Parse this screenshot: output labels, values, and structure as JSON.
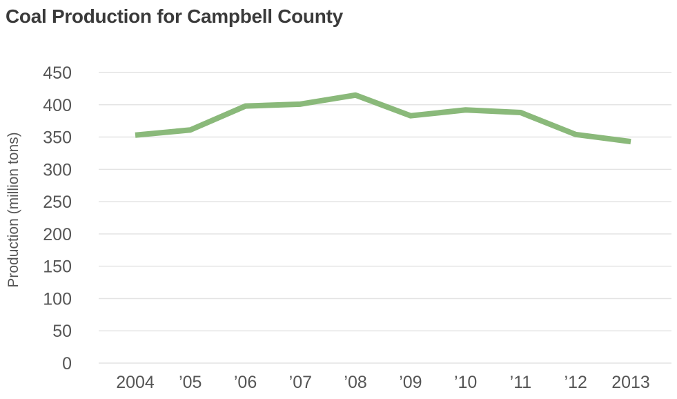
{
  "chart_data": {
    "type": "line",
    "title": "Coal Production for Campbell County",
    "xlabel": "",
    "ylabel": "Production (million tons)",
    "categories": [
      "2004",
      "’05",
      "’06",
      "’07",
      "’08",
      "’09",
      "’10",
      "’11",
      "’12",
      "2013"
    ],
    "y_ticks": [
      0,
      50,
      100,
      150,
      200,
      250,
      300,
      350,
      400,
      450
    ],
    "ylim": [
      0,
      450
    ],
    "grid": true,
    "legend": "none",
    "series": [
      {
        "values": [
          353,
          361,
          398,
          401,
          415,
          383,
          392,
          388,
          354,
          343
        ],
        "color": "#8ab97a"
      }
    ]
  }
}
